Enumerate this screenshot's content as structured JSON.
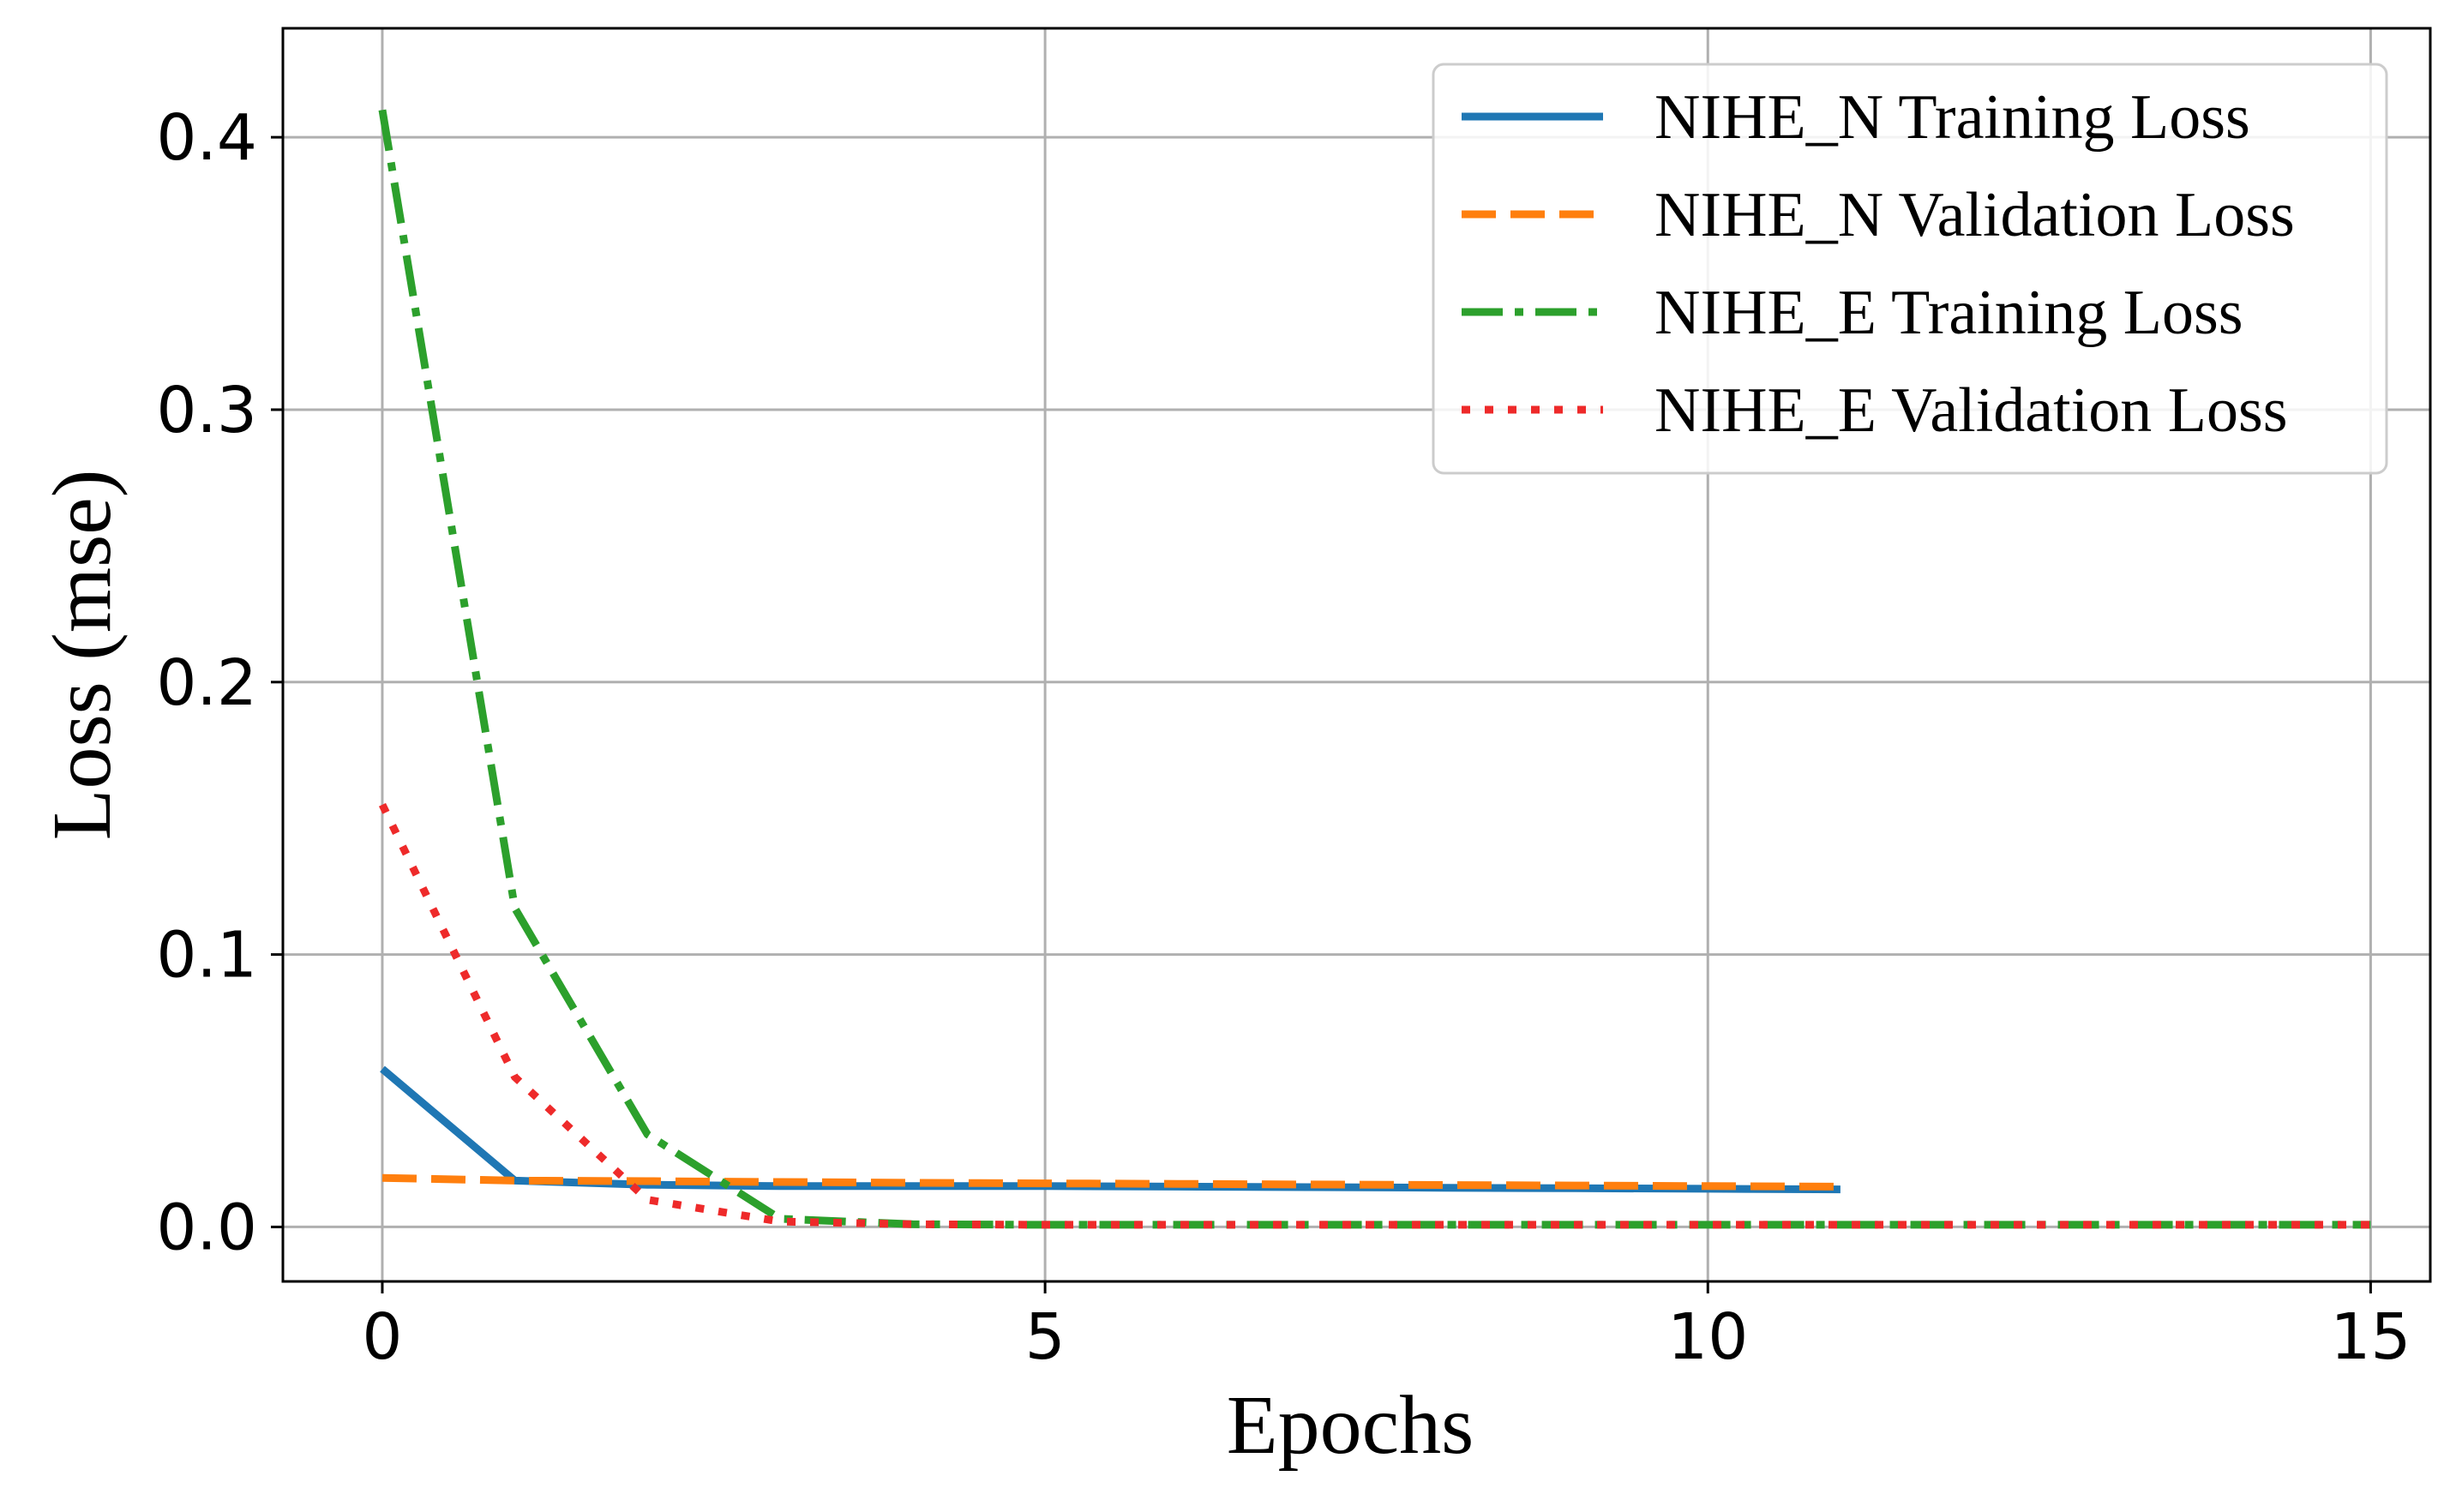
{
  "chart_data": {
    "type": "line",
    "xlabel": "Epochs",
    "ylabel": "Loss (mse)",
    "xlim": [
      -0.75,
      15.45
    ],
    "ylim": [
      -0.02,
      0.44
    ],
    "xticks": [
      0,
      5,
      10,
      15
    ],
    "yticks": [
      0.0,
      0.1,
      0.2,
      0.3,
      0.4
    ],
    "xtick_labels": [
      "0",
      "5",
      "10",
      "15"
    ],
    "ytick_labels": [
      "0.0",
      "0.1",
      "0.2",
      "0.3",
      "0.4"
    ],
    "grid": true,
    "legend_position": "top-right",
    "series": [
      {
        "name": "NIHE_N Training Loss",
        "color": "#1f77b4",
        "style": "solid",
        "x": [
          0,
          1,
          2,
          3,
          4,
          5,
          6,
          7,
          8,
          9,
          10,
          11
        ],
        "y": [
          0.058,
          0.017,
          0.0155,
          0.015,
          0.015,
          0.015,
          0.0148,
          0.0146,
          0.0144,
          0.0142,
          0.014,
          0.0138
        ]
      },
      {
        "name": "NIHE_N Validation Loss",
        "color": "#ff7f0e",
        "style": "dashed",
        "x": [
          0,
          1,
          2,
          3,
          4,
          5,
          6,
          7,
          8,
          9,
          10,
          11
        ],
        "y": [
          0.018,
          0.017,
          0.0168,
          0.0165,
          0.0162,
          0.016,
          0.0158,
          0.0156,
          0.0154,
          0.0152,
          0.015,
          0.0148
        ]
      },
      {
        "name": "NIHE_E Training Loss",
        "color": "#2ca02c",
        "style": "dashdot",
        "x": [
          0,
          1,
          2,
          3,
          4,
          5,
          6,
          7,
          8,
          9,
          10,
          11,
          12,
          13,
          14,
          15
        ],
        "y": [
          0.41,
          0.117,
          0.034,
          0.003,
          0.001,
          0.0008,
          0.0008,
          0.0008,
          0.0008,
          0.0008,
          0.0008,
          0.0008,
          0.0008,
          0.0008,
          0.0008,
          0.0008
        ]
      },
      {
        "name": "NIHE_E Validation Loss",
        "color": "#ee2a2a",
        "style": "dotted",
        "x": [
          0,
          1,
          2,
          3,
          4,
          5,
          6,
          7,
          8,
          9,
          10,
          11,
          12,
          13,
          14,
          15
        ],
        "y": [
          0.155,
          0.055,
          0.01,
          0.002,
          0.001,
          0.0008,
          0.0008,
          0.0008,
          0.0008,
          0.0008,
          0.0008,
          0.0008,
          0.0008,
          0.0008,
          0.0008,
          0.0008
        ]
      }
    ]
  }
}
